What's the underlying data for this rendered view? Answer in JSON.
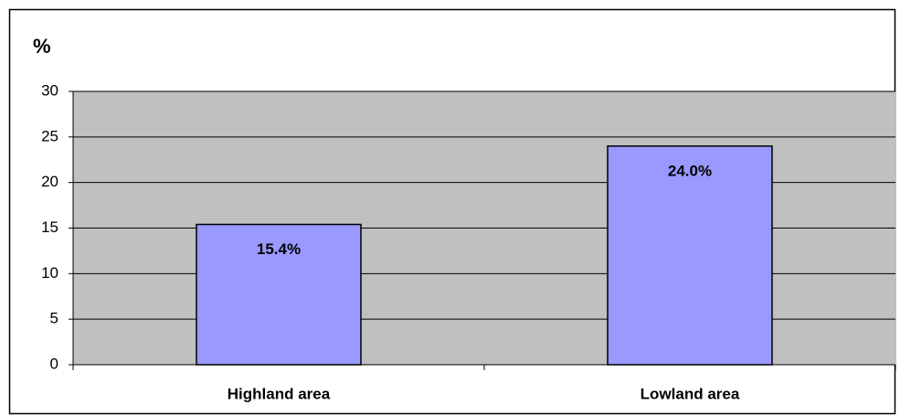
{
  "chart_data": {
    "type": "bar",
    "y_axis_label": "%",
    "categories": [
      "Highland area",
      "Lowland area"
    ],
    "values": [
      15.4,
      24.0
    ],
    "value_labels": [
      "15.4%",
      "24.0%"
    ],
    "color": "#9999ff",
    "plot_background": "#c0c0c0",
    "ylim": [
      0,
      30
    ],
    "yticks": [
      0,
      5,
      10,
      15,
      20,
      25,
      30
    ],
    "grid": true
  }
}
